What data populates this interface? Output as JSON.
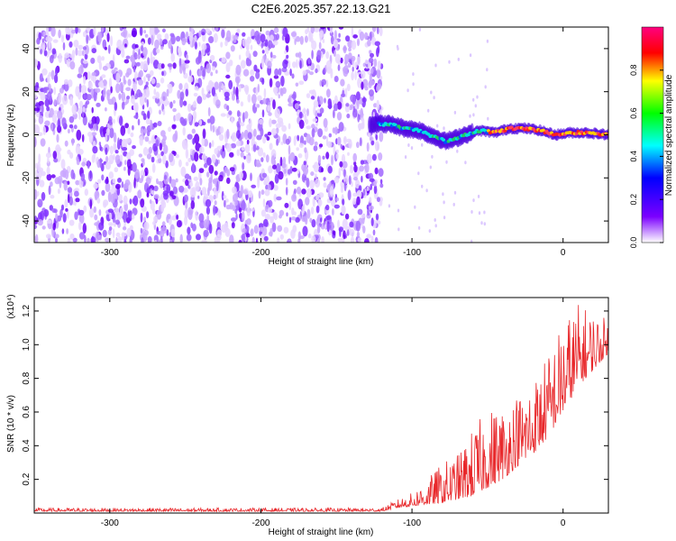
{
  "title": "C2E6.2025.357.22.13.G21",
  "chart_data": [
    {
      "type": "heatmap",
      "id": "spectrogram",
      "xlabel": "Height of straight line (km)",
      "ylabel": "Frequency (Hz)",
      "xlim": [
        -350,
        30
      ],
      "ylim": [
        -50,
        50
      ],
      "xticks": [
        -300,
        -200,
        -100,
        0
      ],
      "yticks": [
        -40,
        -20,
        0,
        20,
        40
      ],
      "colorbar": {
        "label": "Normalized spectral amplitude",
        "range": [
          0,
          1
        ],
        "ticks": [
          "0.0",
          "0.2",
          "0.4",
          "0.6",
          "0.8"
        ],
        "colors": [
          "#ffffff",
          "#7b00ff",
          "#0000ff",
          "#00ffff",
          "#00ff00",
          "#ffff00",
          "#ff0000",
          "#ff0080"
        ]
      },
      "noise_region_x": [
        -350,
        -120
      ],
      "ridge": {
        "x": [
          -125,
          -115,
          -105,
          -95,
          -85,
          -78,
          -72,
          -65,
          -55,
          -45,
          -35,
          -25,
          -15,
          -5,
          5,
          15,
          30
        ],
        "frequency": [
          5,
          5,
          3,
          2,
          -1,
          -3,
          -2,
          0,
          2,
          1,
          3,
          3,
          2,
          0,
          1,
          1,
          0
        ]
      }
    },
    {
      "type": "line",
      "id": "snr",
      "xlabel": "Height of straight line (km)",
      "ylabel": "SNR (10 * v/v)",
      "scale_label": "(x10⁴)",
      "xlim": [
        -350,
        30
      ],
      "ylim": [
        0,
        1.28
      ],
      "xticks": [
        -300,
        -200,
        -100,
        0
      ],
      "yticks": [
        0.2,
        0.4,
        0.6,
        0.8,
        1.0,
        1.2
      ],
      "ytick_labels": [
        "0.2",
        "0.4",
        "0.6",
        "0.8",
        "1.0",
        "1.2"
      ],
      "color": "#e8282b",
      "envelope": {
        "x": [
          -350,
          -120,
          -110,
          -100,
          -90,
          -80,
          -70,
          -60,
          -50,
          -40,
          -30,
          -20,
          -10,
          0,
          10,
          20,
          30
        ],
        "baseline": [
          0.01,
          0.01,
          0.03,
          0.04,
          0.05,
          0.06,
          0.08,
          0.1,
          0.15,
          0.2,
          0.28,
          0.35,
          0.45,
          0.6,
          0.75,
          0.85,
          0.95
        ],
        "peak": [
          0.03,
          0.03,
          0.08,
          0.12,
          0.2,
          0.3,
          0.35,
          0.5,
          0.62,
          0.65,
          0.72,
          0.8,
          0.95,
          1.15,
          1.25,
          1.2,
          1.15
        ]
      }
    }
  ]
}
